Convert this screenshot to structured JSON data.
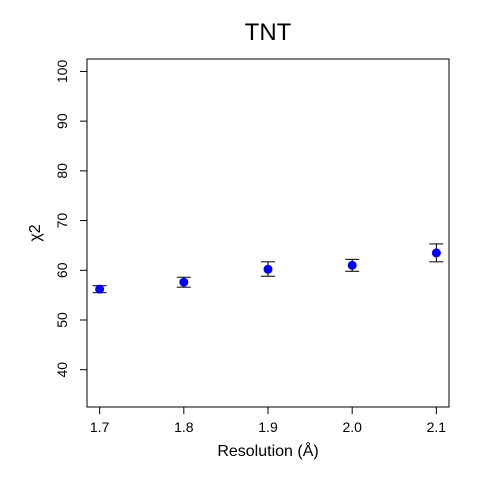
{
  "chart_data": {
    "type": "scatter",
    "title": "TNT",
    "xlabel": "Resolution (Å)",
    "ylabel": "χ2",
    "x_ticks": [
      "1.7",
      "1.8",
      "1.9",
      "2.0",
      "2.1"
    ],
    "y_ticks": [
      "40",
      "50",
      "60",
      "70",
      "80",
      "90",
      "100"
    ],
    "xlim": [
      1.685,
      2.115
    ],
    "ylim": [
      32.5,
      102.5
    ],
    "grid": false,
    "series": [
      {
        "color": "#0000ff",
        "points": [
          {
            "x": 1.7,
            "y": 56.2,
            "err_low": 55.5,
            "err_high": 56.9
          },
          {
            "x": 1.8,
            "y": 57.6,
            "err_low": 56.6,
            "err_high": 58.6
          },
          {
            "x": 1.9,
            "y": 60.2,
            "err_low": 58.8,
            "err_high": 61.7
          },
          {
            "x": 2.0,
            "y": 61.0,
            "err_low": 59.8,
            "err_high": 62.2
          },
          {
            "x": 2.1,
            "y": 63.5,
            "err_low": 61.7,
            "err_high": 65.3
          }
        ]
      }
    ]
  }
}
